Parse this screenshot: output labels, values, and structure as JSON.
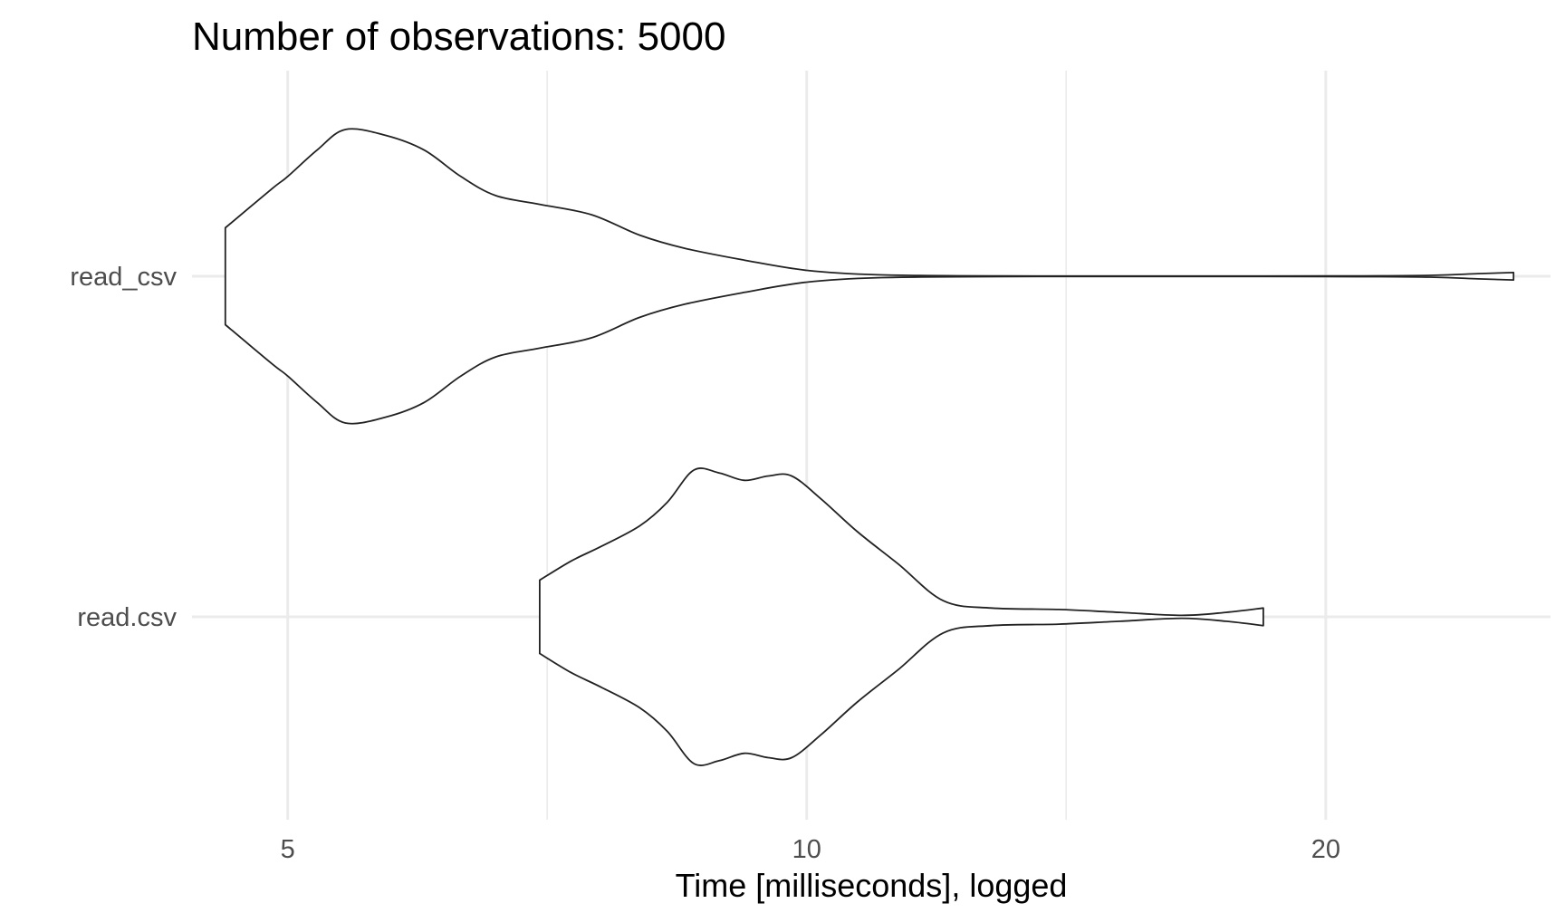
{
  "chart_data": {
    "type": "violin",
    "title": "Number of observations: 5000",
    "xlabel": "Time [milliseconds], logged",
    "ylabel": "",
    "x_scale": "log",
    "xlim": [
      4.4,
      27.0
    ],
    "x_ticks": [
      5,
      10,
      20
    ],
    "x_minor_ticks": [
      7.07,
      14.14,
      28.28
    ],
    "grid": true,
    "categories": [
      "read_csv",
      "read.csv"
    ],
    "series": [
      {
        "category": "read_csv",
        "min": 4.6,
        "max": 25.7,
        "density_profile": [
          [
            4.6,
            0.33
          ],
          [
            4.9,
            0.6
          ],
          [
            5.0,
            0.68
          ],
          [
            5.2,
            0.86
          ],
          [
            5.4,
            1.0
          ],
          [
            5.7,
            0.96
          ],
          [
            6.0,
            0.86
          ],
          [
            6.3,
            0.68
          ],
          [
            6.6,
            0.55
          ],
          [
            7.0,
            0.49
          ],
          [
            7.5,
            0.42
          ],
          [
            8.0,
            0.28
          ],
          [
            8.5,
            0.19
          ],
          [
            9.2,
            0.11
          ],
          [
            10.0,
            0.04
          ],
          [
            11.0,
            0.01
          ],
          [
            13.0,
            0.002
          ],
          [
            20.0,
            0.002
          ],
          [
            23.0,
            0.006
          ],
          [
            24.5,
            0.018
          ],
          [
            25.7,
            0.025
          ]
        ]
      },
      {
        "category": "read.csv",
        "min": 7.0,
        "max": 18.4,
        "density_profile": [
          [
            7.0,
            0.25
          ],
          [
            7.3,
            0.38
          ],
          [
            7.6,
            0.48
          ],
          [
            8.0,
            0.62
          ],
          [
            8.3,
            0.78
          ],
          [
            8.6,
            1.0
          ],
          [
            8.9,
            0.98
          ],
          [
            9.2,
            0.93
          ],
          [
            9.5,
            0.96
          ],
          [
            9.8,
            0.96
          ],
          [
            10.2,
            0.8
          ],
          [
            10.7,
            0.58
          ],
          [
            11.3,
            0.36
          ],
          [
            12.0,
            0.11
          ],
          [
            12.8,
            0.06
          ],
          [
            14.0,
            0.05
          ],
          [
            15.2,
            0.03
          ],
          [
            16.5,
            0.01
          ],
          [
            17.5,
            0.03
          ],
          [
            18.4,
            0.06
          ]
        ]
      }
    ]
  }
}
